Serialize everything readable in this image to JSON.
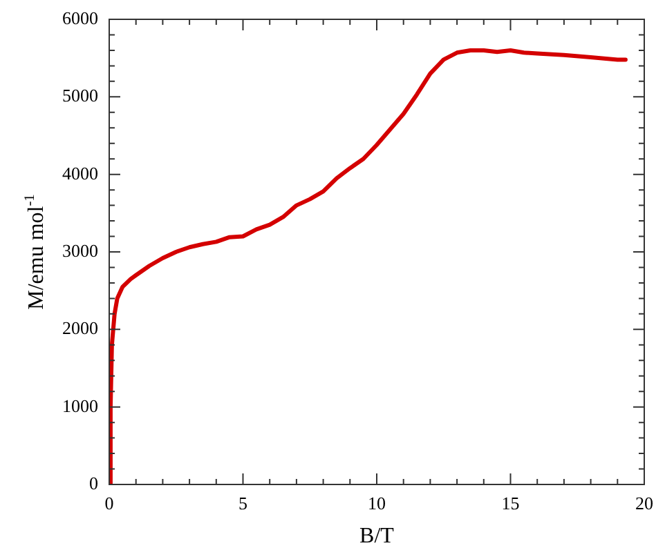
{
  "chart_data": {
    "type": "line",
    "xlabel": "B/T",
    "ylabel": "M/emu mol$^{-1}$",
    "xlim": [
      0,
      20
    ],
    "ylim": [
      0,
      6000
    ],
    "xticks": [
      0,
      {
        "value": 1,
        "label": null
      },
      {
        "value": 2,
        "label": null
      },
      {
        "value": 3,
        "label": null
      },
      {
        "value": 4,
        "label": null
      },
      5,
      {
        "value": 6,
        "label": null
      },
      {
        "value": 7,
        "label": null
      },
      {
        "value": 8,
        "label": null
      },
      {
        "value": 9,
        "label": null
      },
      10,
      {
        "value": 11,
        "label": null
      },
      {
        "value": 12,
        "label": null
      },
      {
        "value": 13,
        "label": null
      },
      {
        "value": 14,
        "label": null
      },
      15,
      {
        "value": 16,
        "label": null
      },
      {
        "value": 17,
        "label": null
      },
      {
        "value": 18,
        "label": null
      },
      {
        "value": 19,
        "label": null
      },
      20
    ],
    "yticks": [
      0,
      {
        "value": 200,
        "label": null
      },
      {
        "value": 400,
        "label": null
      },
      {
        "value": 600,
        "label": null
      },
      {
        "value": 800,
        "label": null
      },
      1000,
      {
        "value": 1200,
        "label": null
      },
      {
        "value": 1400,
        "label": null
      },
      {
        "value": 1600,
        "label": null
      },
      {
        "value": 1800,
        "label": null
      },
      2000,
      {
        "value": 2200,
        "label": null
      },
      {
        "value": 2400,
        "label": null
      },
      {
        "value": 2600,
        "label": null
      },
      {
        "value": 2800,
        "label": null
      },
      3000,
      {
        "value": 3200,
        "label": null
      },
      {
        "value": 3400,
        "label": null
      },
      {
        "value": 3600,
        "label": null
      },
      {
        "value": 3800,
        "label": null
      },
      4000,
      {
        "value": 4200,
        "label": null
      },
      {
        "value": 4400,
        "label": null
      },
      {
        "value": 4600,
        "label": null
      },
      {
        "value": 4800,
        "label": null
      },
      5000,
      {
        "value": 5200,
        "label": null
      },
      {
        "value": 5400,
        "label": null
      },
      {
        "value": 5600,
        "label": null
      },
      {
        "value": 5800,
        "label": null
      },
      6000
    ],
    "marker": "none",
    "series": [
      {
        "color": "#d40000",
        "x": [
          0,
          0.05,
          0.1,
          0.2,
          0.3,
          0.5,
          0.8,
          1,
          1.5,
          2,
          2.5,
          3,
          3.5,
          4,
          4.5,
          5,
          5.5,
          6,
          6.5,
          7,
          7.5,
          8,
          8.5,
          9,
          9.5,
          10,
          10.5,
          11,
          11.5,
          12,
          12.5,
          13,
          13.5,
          14,
          14.5,
          15,
          15.5,
          16,
          17,
          18,
          19,
          19.3
        ],
        "values": [
          0,
          1000,
          1800,
          2200,
          2400,
          2550,
          2650,
          2700,
          2820,
          2920,
          3000,
          3060,
          3100,
          3130,
          3190,
          3200,
          3290,
          3350,
          3450,
          3600,
          3680,
          3780,
          3950,
          4080,
          4200,
          4380,
          4580,
          4780,
          5030,
          5300,
          5480,
          5570,
          5600,
          5600,
          5580,
          5600,
          5570,
          5560,
          5540,
          5510,
          5480,
          5480
        ]
      }
    ]
  }
}
